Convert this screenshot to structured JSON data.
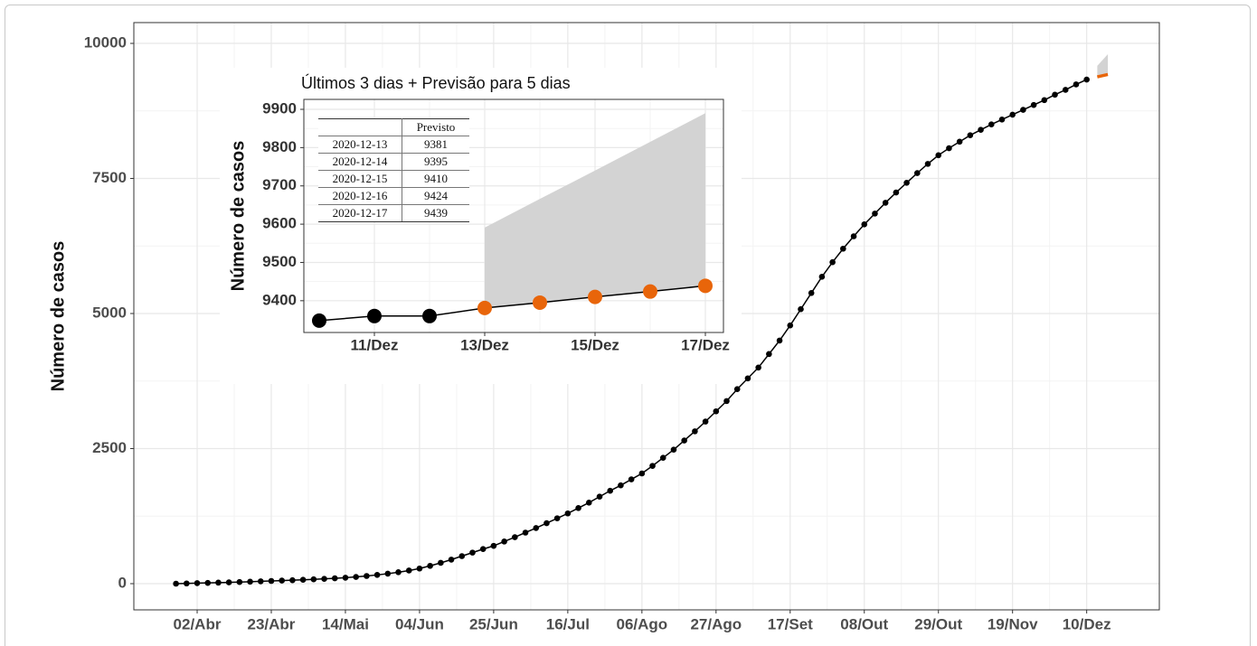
{
  "chart_data": [
    {
      "type": "line",
      "y_label": "Número de casos",
      "categories": [
        null,
        null,
        "02/Abr",
        null,
        null,
        null,
        null,
        null,
        null,
        "23/Abr",
        null,
        null,
        null,
        null,
        null,
        null,
        "14/Mai",
        null,
        null,
        null,
        null,
        null,
        null,
        "04/Jun",
        null,
        null,
        null,
        null,
        null,
        null,
        "25/Jun",
        null,
        null,
        null,
        null,
        null,
        null,
        "16/Jul",
        null,
        null,
        null,
        null,
        null,
        null,
        "06/Ago",
        null,
        null,
        null,
        null,
        null,
        null,
        "27/Ago",
        null,
        null,
        null,
        null,
        null,
        null,
        "17/Set",
        null,
        null,
        null,
        null,
        null,
        null,
        "08/Out",
        null,
        null,
        null,
        null,
        null,
        null,
        "29/Out",
        null,
        null,
        null,
        null,
        null,
        null,
        "19/Nov",
        null,
        null,
        null,
        null,
        null,
        null,
        "10/Dez",
        null,
        null
      ],
      "series": [
        {
          "color": "#000000",
          "marker_size": 3.3,
          "line_width": 1.5,
          "values": [
            0,
            4,
            10,
            14,
            19,
            24,
            30,
            36,
            43,
            50,
            57,
            64,
            72,
            80,
            89,
            99,
            110,
            125,
            142,
            162,
            185,
            212,
            243,
            280,
            330,
            385,
            445,
            510,
            575,
            640,
            700,
            780,
            860,
            945,
            1030,
            1120,
            1210,
            1300,
            1400,
            1500,
            1610,
            1720,
            1820,
            1930,
            2040,
            2180,
            2330,
            2480,
            2650,
            2820,
            3000,
            3190,
            3380,
            3600,
            3800,
            4000,
            4250,
            4500,
            4780,
            5080,
            5380,
            5680,
            5950,
            6200,
            6430,
            6650,
            6850,
            7050,
            7240,
            7420,
            7600,
            7770,
            7930,
            8060,
            8180,
            8300,
            8400,
            8500,
            8590,
            8680,
            8770,
            8860,
            8950,
            9050,
            9140,
            9240,
            9330,
            null,
            null
          ]
        },
        {
          "color": "#e8650a",
          "line_width": 3.5,
          "values": [
            null,
            null,
            null,
            null,
            null,
            null,
            null,
            null,
            null,
            null,
            null,
            null,
            null,
            null,
            null,
            null,
            null,
            null,
            null,
            null,
            null,
            null,
            null,
            null,
            null,
            null,
            null,
            null,
            null,
            null,
            null,
            null,
            null,
            null,
            null,
            null,
            null,
            null,
            null,
            null,
            null,
            null,
            null,
            null,
            null,
            null,
            null,
            null,
            null,
            null,
            null,
            null,
            null,
            null,
            null,
            null,
            null,
            null,
            null,
            null,
            null,
            null,
            null,
            null,
            null,
            null,
            null,
            null,
            null,
            null,
            null,
            null,
            null,
            null,
            null,
            null,
            null,
            null,
            null,
            null,
            null,
            null,
            null,
            null,
            null,
            null,
            null,
            9381,
            9424
          ]
        }
      ],
      "band": {
        "color": "#d3d3d3",
        "upper": [
          null,
          null,
          null,
          null,
          null,
          null,
          null,
          null,
          null,
          null,
          null,
          null,
          null,
          null,
          null,
          null,
          null,
          null,
          null,
          null,
          null,
          null,
          null,
          null,
          null,
          null,
          null,
          null,
          null,
          null,
          null,
          null,
          null,
          null,
          null,
          null,
          null,
          null,
          null,
          null,
          null,
          null,
          null,
          null,
          null,
          null,
          null,
          null,
          null,
          null,
          null,
          null,
          null,
          null,
          null,
          null,
          null,
          null,
          null,
          null,
          null,
          null,
          null,
          null,
          null,
          null,
          null,
          null,
          null,
          null,
          null,
          null,
          null,
          null,
          null,
          null,
          null,
          null,
          null,
          null,
          null,
          null,
          null,
          null,
          null,
          null,
          null,
          9585,
          9800
        ]
      },
      "ylim": [
        -485,
        10385
      ],
      "yticks": [
        0,
        2500,
        5000,
        7500,
        10000
      ],
      "grid": true
    },
    {
      "type": "line",
      "title": "Últimos 3 dias + Previsão para 5 dias",
      "y_label": "Número de casos",
      "categories": [
        null,
        "11/Dez",
        null,
        "13/Dez",
        null,
        "15/Dez",
        null,
        "17/Dez"
      ],
      "series": [
        {
          "color": "#000000",
          "marker_size": 8,
          "line_width": 1.5,
          "values": [
            9348,
            9360,
            9360,
            null,
            null,
            null,
            null,
            null
          ]
        },
        {
          "color": "#e8650a",
          "line_color": "#000000",
          "marker_size": 8,
          "line_width": 1.5,
          "values": [
            null,
            null,
            null,
            9381,
            9395,
            9410,
            9424,
            9439
          ]
        }
      ],
      "connect": true,
      "band": {
        "color": "#d3d3d3",
        "upper": [
          null,
          null,
          null,
          9591,
          9666,
          9740,
          9815,
          9890
        ]
      },
      "ylim": [
        9317,
        9926
      ],
      "yticks": [
        9400,
        9500,
        9600,
        9700,
        9800,
        9900
      ],
      "grid": true,
      "table": {
        "column": "Previsto",
        "rows": [
          [
            "2020-12-13",
            9381
          ],
          [
            "2020-12-14",
            9395
          ],
          [
            "2020-12-15",
            9410
          ],
          [
            "2020-12-16",
            9424
          ],
          [
            "2020-12-17",
            9439
          ]
        ]
      }
    }
  ]
}
